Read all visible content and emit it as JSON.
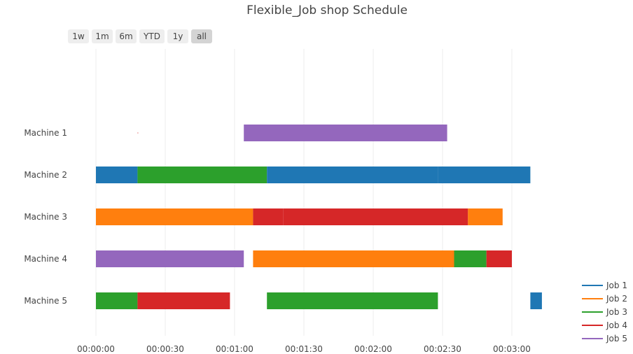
{
  "chart_data": {
    "type": "gantt",
    "title": "Flexible_Job shop Schedule",
    "range_selector": {
      "buttons": [
        "1w",
        "1m",
        "6m",
        "YTD",
        "1y",
        "all"
      ],
      "active": "all"
    },
    "x_ticks": [
      "00:00:00",
      "00:00:30",
      "00:01:00",
      "00:01:30",
      "00:02:00",
      "00:02:30",
      "00:03:00"
    ],
    "x_tick_seconds": [
      0,
      30,
      60,
      90,
      120,
      150,
      180
    ],
    "x_range_seconds": [
      0,
      190
    ],
    "machines": [
      "Machine 1",
      "Machine 2",
      "Machine 3",
      "Machine 4",
      "Machine 5"
    ],
    "jobs": [
      {
        "name": "Job 1",
        "color": "#1f77b4"
      },
      {
        "name": "Job 2",
        "color": "#ff7f0e"
      },
      {
        "name": "Job 3",
        "color": "#2ca02c"
      },
      {
        "name": "Job 4",
        "color": "#d62728"
      },
      {
        "name": "Job 5",
        "color": "#9467bd"
      }
    ],
    "tasks": [
      {
        "machine": "Machine 1",
        "job": "Job 4",
        "start": 18,
        "end": 18.3
      },
      {
        "machine": "Machine 1",
        "job": "Job 5",
        "start": 64,
        "end": 152
      },
      {
        "machine": "Machine 2",
        "job": "Job 1",
        "start": 0,
        "end": 18
      },
      {
        "machine": "Machine 2",
        "job": "Job 3",
        "start": 18,
        "end": 74
      },
      {
        "machine": "Machine 2",
        "job": "Job 1",
        "start": 74,
        "end": 148
      },
      {
        "machine": "Machine 2",
        "job": "Job 1",
        "start": 148,
        "end": 188
      },
      {
        "machine": "Machine 3",
        "job": "Job 2",
        "start": 0,
        "end": 68
      },
      {
        "machine": "Machine 3",
        "job": "Job 4",
        "start": 68,
        "end": 81
      },
      {
        "machine": "Machine 3",
        "job": "Job 4",
        "start": 81,
        "end": 161
      },
      {
        "machine": "Machine 3",
        "job": "Job 2",
        "start": 161,
        "end": 176
      },
      {
        "machine": "Machine 4",
        "job": "Job 5",
        "start": 0,
        "end": 64
      },
      {
        "machine": "Machine 4",
        "job": "Job 2",
        "start": 68,
        "end": 155
      },
      {
        "machine": "Machine 4",
        "job": "Job 3",
        "start": 155,
        "end": 169
      },
      {
        "machine": "Machine 4",
        "job": "Job 4",
        "start": 169,
        "end": 180
      },
      {
        "machine": "Machine 5",
        "job": "Job 3",
        "start": 0,
        "end": 18
      },
      {
        "machine": "Machine 5",
        "job": "Job 4",
        "start": 18,
        "end": 58
      },
      {
        "machine": "Machine 5",
        "job": "Job 3",
        "start": 74,
        "end": 148
      },
      {
        "machine": "Machine 5",
        "job": "Job 1",
        "start": 188,
        "end": 193
      }
    ],
    "legend_position": "bottom-right"
  }
}
